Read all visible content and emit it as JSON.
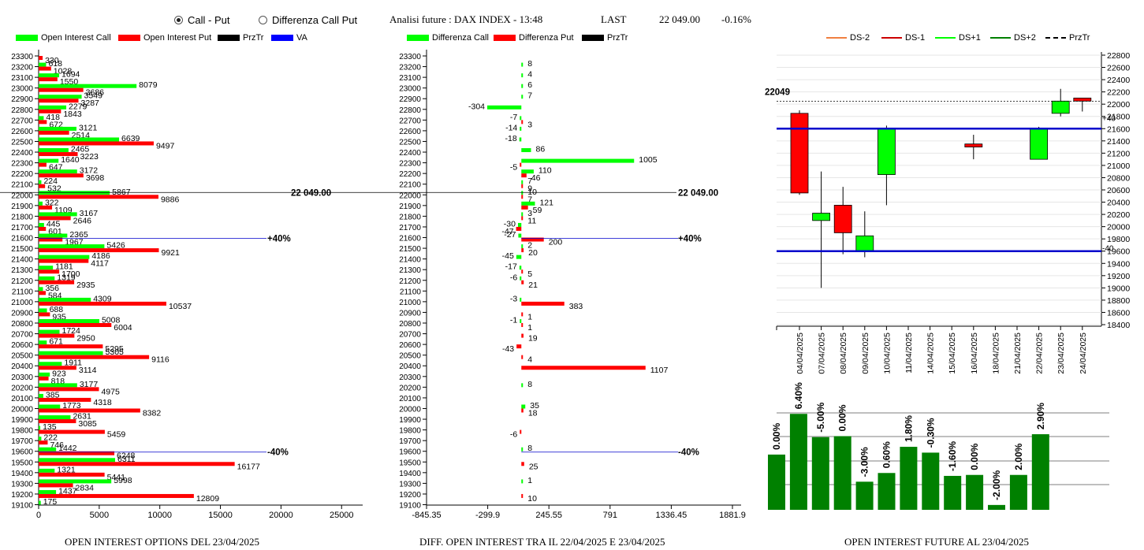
{
  "header": {
    "radio_call_put": "Call - Put",
    "radio_diff": "Differenza Call Put",
    "title": "Analisi future : DAX INDEX - 13:48",
    "last_label": "LAST",
    "last_value": "22 049.00",
    "change": "-0.16%"
  },
  "legend1": [
    "Open Interest Call",
    "Open Interest Put",
    "PrzTr",
    "VA"
  ],
  "legend2": [
    "Differenza Call",
    "Differenza Put",
    "PrzTr"
  ],
  "legend3": [
    "DS-2",
    "DS-1",
    "DS+1",
    "DS+2",
    "PrzTr"
  ],
  "colors": {
    "call": "#00ff00",
    "put": "#ff0000",
    "blue": "#0000cc",
    "dark_green": "#008000",
    "orange": "#f08040",
    "dark_red": "#cc0000"
  },
  "captions": {
    "left": "OPEN INTEREST OPTIONS DEL 23/04/2025",
    "middle": "DIFF. OPEN INTEREST TRA IL 22/04/2025 E 23/04/2025",
    "right": "OPEN INTEREST FUTURE AL 23/04/2025"
  },
  "chart_data": [
    {
      "type": "bar",
      "orientation": "horizontal",
      "strikes": [
        23300,
        23200,
        23100,
        23000,
        22900,
        22800,
        22700,
        22600,
        22500,
        22400,
        22300,
        22200,
        22100,
        22000,
        21900,
        21800,
        21700,
        21600,
        21500,
        21400,
        21300,
        21200,
        21100,
        21000,
        20900,
        20800,
        20700,
        20600,
        20500,
        20400,
        20300,
        20200,
        20100,
        20000,
        19900,
        19800,
        19700,
        19600,
        19500,
        19400,
        19300,
        19200,
        19100
      ],
      "series": [
        {
          "name": "Open Interest Call",
          "values": [
            null,
            618,
            1694,
            8079,
            3549,
            2279,
            418,
            3121,
            6639,
            2465,
            1640,
            3172,
            224,
            5867,
            322,
            3167,
            445,
            2365,
            5426,
            4186,
            1181,
            1319,
            356,
            4309,
            688,
            5008,
            1724,
            671,
            5305,
            1911,
            923,
            3177,
            385,
            1773,
            2631,
            135,
            222,
            1442,
            6311,
            1321,
            5998,
            1437,
            175
          ]
        },
        {
          "name": "Open Interest Put",
          "values": [
            330,
            1028,
            1550,
            3686,
            3287,
            1843,
            672,
            2514,
            9497,
            3223,
            647,
            3698,
            532,
            9886,
            1109,
            2646,
            601,
            1967,
            9921,
            4117,
            1700,
            2935,
            584,
            10537,
            935,
            6004,
            2950,
            5295,
            9116,
            3114,
            818,
            4975,
            4318,
            8382,
            3085,
            5459,
            746,
            6248,
            16177,
            5441,
            2834,
            12809,
            null
          ]
        }
      ],
      "xticks": [
        0,
        5000,
        10000,
        15000,
        20000,
        25000
      ],
      "xlim": [
        0,
        27000
      ],
      "annotations": [
        {
          "text": "22 049.00",
          "strike": 22000
        },
        {
          "text": "+40%",
          "strike": 21600
        },
        {
          "text": "-40%",
          "strike": 19600
        }
      ]
    },
    {
      "type": "bar",
      "orientation": "horizontal",
      "strikes": [
        23300,
        23200,
        23100,
        23000,
        22900,
        22800,
        22700,
        22600,
        22500,
        22400,
        22300,
        22200,
        22100,
        22000,
        21900,
        21800,
        21700,
        21600,
        21500,
        21400,
        21300,
        21200,
        21100,
        21000,
        20900,
        20800,
        20700,
        20600,
        20500,
        20400,
        20300,
        20200,
        20100,
        20000,
        19900,
        19800,
        19700,
        19600,
        19500,
        19400,
        19300,
        19200,
        19100
      ],
      "series": [
        {
          "name": "Differenza Call",
          "values": [
            null,
            8,
            4,
            6,
            7,
            -304,
            -7,
            -14,
            -18,
            86,
            1005,
            110,
            7,
            10,
            121,
            3,
            -30,
            -27,
            2,
            -45,
            -17,
            -6,
            null,
            -3,
            null,
            -1,
            null,
            null,
            null,
            null,
            null,
            8,
            null,
            35,
            null,
            null,
            null,
            8,
            null,
            null,
            1,
            null,
            null
          ]
        },
        {
          "name": "Differenza Put",
          "values": [
            null,
            null,
            null,
            null,
            null,
            null,
            3,
            null,
            null,
            null,
            -5,
            46,
            9,
            7,
            59,
            11,
            -47,
            200,
            20,
            null,
            5,
            21,
            null,
            383,
            1,
            1,
            19,
            -43,
            4,
            1107,
            null,
            null,
            null,
            18,
            null,
            -6,
            null,
            null,
            25,
            null,
            null,
            10,
            null
          ]
        }
      ],
      "xticks": [
        -845.35,
        -299.9,
        245.55,
        791,
        1336.45,
        1881.9
      ],
      "xlim": [
        -845.35,
        1881.9
      ],
      "annotations": [
        {
          "text": "22 049.00",
          "strike": 22000
        },
        {
          "text": "+40%",
          "strike": 21600
        },
        {
          "text": "-40%",
          "strike": 19600
        }
      ]
    },
    {
      "type": "candlestick",
      "dates": [
        "04/04/2025",
        "07/04/2025",
        "08/04/2025",
        "09/04/2025",
        "10/04/2025",
        "11/04/2025",
        "14/04/2025",
        "15/04/2025",
        "16/04/2025",
        "18/04/2025",
        "21/04/2025",
        "22/04/2025",
        "23/04/2025",
        "24/04/2025"
      ],
      "candles": [
        {
          "o": 21850,
          "c": 20550,
          "h": 21900,
          "l": 20520
        },
        {
          "o": 20100,
          "c": 20220,
          "h": 20900,
          "l": 19000
        },
        {
          "o": 20350,
          "c": 19900,
          "h": 20650,
          "l": 19550
        },
        {
          "o": 19600,
          "c": 19850,
          "h": 20250,
          "l": 19500
        },
        {
          "o": 20850,
          "c": 21600,
          "h": 21650,
          "l": 20350
        },
        null,
        null,
        null,
        {
          "o": 21350,
          "c": 21300,
          "h": 21500,
          "l": 21100
        },
        null,
        null,
        {
          "o": 21100,
          "c": 21600,
          "h": 21630,
          "l": 21100
        },
        {
          "o": 21850,
          "c": 22050,
          "h": 22250,
          "l": 21800
        },
        {
          "o": 22100,
          "c": 22050,
          "h": 22100,
          "l": 21880
        }
      ],
      "yticks": [
        18400,
        18600,
        18800,
        19000,
        19200,
        19400,
        19600,
        19800,
        20000,
        20200,
        20400,
        20600,
        20800,
        21000,
        21200,
        21400,
        21600,
        21800,
        22000,
        22200,
        22400,
        22600,
        22800
      ],
      "ylim": [
        18400,
        22900
      ],
      "przTr": 22049,
      "przTr_label": "22049",
      "blue_lines": [
        21600,
        19600
      ],
      "blue_labels": [
        "+40",
        "-40"
      ]
    },
    {
      "type": "bar",
      "values": [
        0.0,
        6.4,
        -5.0,
        0.0,
        -3.0,
        0.6,
        1.8,
        -0.3,
        -1.6,
        0.0,
        -2.0,
        2.0,
        2.9
      ],
      "labels": [
        "0.00%",
        "6.40%",
        "-5.00%",
        "0.00%",
        "-3.00%",
        "0.60%",
        "1.80%",
        "-0.30%",
        "-1.60%",
        "0.00%",
        "-2.00%",
        "2.00%",
        "2.90%"
      ],
      "heights": [
        0.57,
        0.99,
        0.75,
        0.76,
        0.29,
        0.38,
        0.65,
        0.59,
        0.35,
        0.36,
        0.05,
        0.36,
        0.78
      ]
    }
  ]
}
